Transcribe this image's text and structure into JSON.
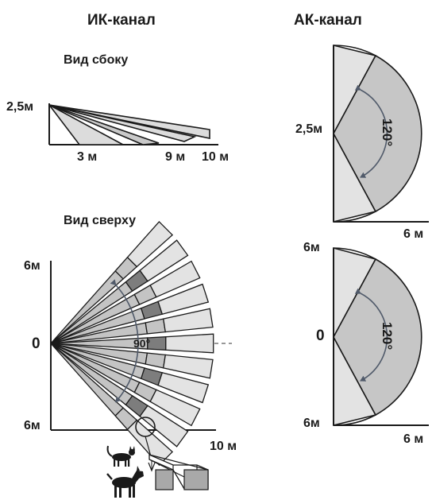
{
  "ir_channel": {
    "title": "ИК-канал",
    "side_view": {
      "title": "Вид сбоку",
      "height_label": "2,5м",
      "distance_labels": [
        "3 м",
        "9 м",
        "10 м"
      ]
    },
    "top_view": {
      "title": "Вид сверху",
      "y_top_label": "6м",
      "y_mid_label": "0",
      "y_bottom_label": "6м",
      "x_label": "10 м",
      "angle_label": "90°"
    },
    "pet_icons": [
      "cat-icon",
      "dog-icon"
    ]
  },
  "ac_channel": {
    "title": "АК-канал",
    "upper_view": {
      "height_label": "2,5м",
      "x_label": "6 м",
      "angle_label": "120°"
    },
    "lower_view": {
      "y_top_label": "6м",
      "y_mid_label": "0",
      "y_bottom_label": "6м",
      "x_label": "6 м",
      "angle_label": "120°"
    }
  },
  "colors": {
    "ink": "#1a1a1a",
    "zone_dark": "#7d7d7d",
    "zone_light": "#c4c4c4",
    "zone_pale": "#e3e3e3",
    "fill_light": "#dcdcdc",
    "fill_gray": "#c6c6c6",
    "arrow": "#505a6a"
  }
}
